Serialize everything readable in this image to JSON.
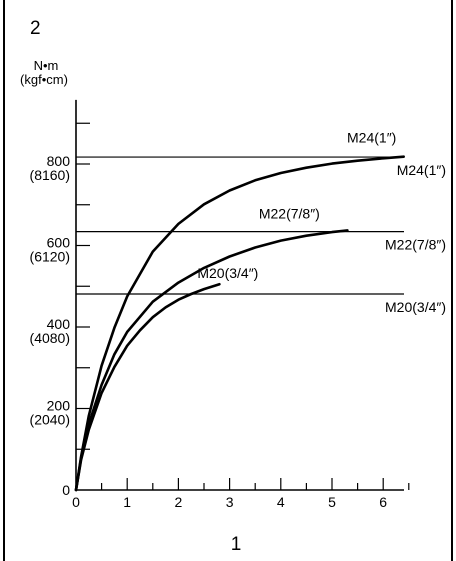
{
  "figure_number": "2",
  "chart_data": {
    "type": "line",
    "ylabel_line1": "N•m",
    "ylabel_line2": "(kgf•cm)",
    "xlabel": "1",
    "xlim": [
      0,
      6.5
    ],
    "ylim": [
      0,
      950
    ],
    "grid": false,
    "x_ticks": [
      "0",
      "1",
      "2",
      "3",
      "4",
      "5",
      "6"
    ],
    "y_ticks": [
      {
        "value": 200,
        "label": "200",
        "sublabel": "(2040)"
      },
      {
        "value": 400,
        "label": "400",
        "sublabel": "(4080)"
      },
      {
        "value": 600,
        "label": "600",
        "sublabel": "(6120)"
      },
      {
        "value": 800,
        "label": "800",
        "sublabel": "(8160)"
      }
    ],
    "y_origin_label": "0",
    "reference_lines": [
      {
        "name": "M24(1″)",
        "y": 817
      },
      {
        "name": "M22(7/8″)",
        "y": 634
      },
      {
        "name": "M20(3/4″)",
        "y": 481
      }
    ],
    "series": [
      {
        "name": "M24(1″)",
        "x": [
          0,
          0.1,
          0.25,
          0.5,
          0.75,
          1.0,
          1.5,
          2.0,
          2.5,
          3.0,
          3.5,
          4.0,
          4.5,
          5.0,
          5.5,
          6.0,
          6.4
        ],
        "y": [
          0,
          82,
          182,
          305,
          398,
          475,
          585,
          653,
          701,
          735,
          760,
          778,
          791,
          801,
          808,
          814,
          818
        ]
      },
      {
        "name": "M22(7/8″)",
        "x": [
          0,
          0.1,
          0.25,
          0.5,
          0.75,
          1.0,
          1.5,
          2.0,
          2.5,
          3.0,
          3.5,
          4.0,
          4.5,
          5.0,
          5.3
        ],
        "y": [
          0,
          78,
          162,
          258,
          333,
          388,
          462,
          509,
          545,
          573,
          595,
          612,
          624,
          633,
          637
        ]
      },
      {
        "name": "M20(3/4″)",
        "x": [
          0,
          0.1,
          0.25,
          0.5,
          0.75,
          1.0,
          1.25,
          1.5,
          1.75,
          2.0,
          2.25,
          2.5,
          2.8
        ],
        "y": [
          0,
          74,
          148,
          238,
          302,
          354,
          392,
          424,
          448,
          467,
          481,
          493,
          505
        ]
      }
    ]
  }
}
